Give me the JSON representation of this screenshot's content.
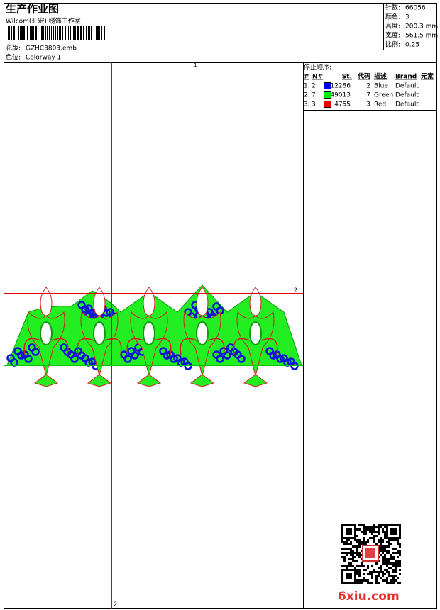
{
  "header": {
    "title": "生产作业图",
    "studio": "Wilcom(汇宏) 绣饰工作室",
    "design_label": "花版:",
    "design": "GZHC3803.emb",
    "colorway_label": "色位:",
    "colorway": "Colorway 1"
  },
  "stats": [
    {
      "label": "针数:",
      "value": "66056"
    },
    {
      "label": "颜色:",
      "value": "3"
    },
    {
      "label": "高度:",
      "value": "200.3 mm"
    },
    {
      "label": "宽度:",
      "value": "561.5 mm"
    },
    {
      "label": "比例:",
      "value": "0.25"
    }
  ],
  "stop_sequence": {
    "title": "停止顺序:",
    "columns": [
      "#",
      "N#",
      "St.",
      "代码",
      "描述",
      "Brand",
      "元素"
    ],
    "rows": [
      {
        "index": "1.",
        "needle": "2",
        "color": "#0000ee",
        "stitches": "12286",
        "code": "2",
        "description": "Blue",
        "brand": "Default"
      },
      {
        "index": "2.",
        "needle": "7",
        "color": "#00ee00",
        "stitches": "49013",
        "code": "7",
        "description": "Green",
        "brand": "Default"
      },
      {
        "index": "3.",
        "needle": "3",
        "color": "#ee0000",
        "stitches": "4755",
        "code": "3",
        "description": "Red",
        "brand": "Default"
      }
    ]
  },
  "guides": {
    "top": "1",
    "right": "2",
    "bottom": "2"
  },
  "watermark": "6xiu.com"
}
